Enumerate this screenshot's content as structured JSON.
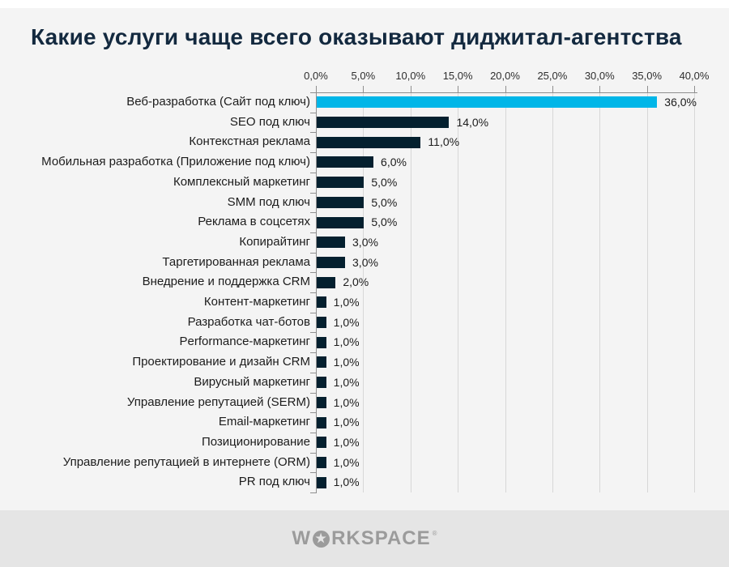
{
  "chart_data": {
    "type": "bar",
    "orientation": "horizontal",
    "title": "Какие услуги чаще всего оказывают диджитал-агентства",
    "categories": [
      "Веб-разработка (Сайт под ключ)",
      "SEO под ключ",
      "Контекстная реклама",
      "Мобильная разработка (Приложение под ключ)",
      "Комплексный маркетинг",
      "SMM под ключ",
      "Реклама в соцсетях",
      "Копирайтинг",
      "Таргетированная реклама",
      "Внедрение и поддержка CRM",
      "Контент-маркетинг",
      "Разработка чат-ботов",
      "Performance-маркетинг",
      "Проектирование и дизайн CRM",
      "Вирусный маркетинг",
      "Управление репутацией (SERM)",
      "Email-маркетинг",
      "Позиционирование",
      "Управление репутацией в интернете (ORM)",
      "PR под ключ"
    ],
    "values": [
      36,
      14,
      11,
      6,
      5,
      5,
      5,
      3,
      3,
      2,
      1,
      1,
      1,
      1,
      1,
      1,
      1,
      1,
      1,
      1
    ],
    "value_labels": [
      "36,0%",
      "14,0%",
      "11,0%",
      "6,0%",
      "5,0%",
      "5,0%",
      "5,0%",
      "3,0%",
      "3,0%",
      "2,0%",
      "1,0%",
      "1,0%",
      "1,0%",
      "1,0%",
      "1,0%",
      "1,0%",
      "1,0%",
      "1,0%",
      "1,0%",
      "1,0%"
    ],
    "xlabel": "",
    "ylabel": "",
    "xlim": [
      0,
      40
    ],
    "x_tick_labels": [
      "0,0%",
      "5,0%",
      "10,0%",
      "15,0%",
      "20,0%",
      "25,0%",
      "30,0%",
      "35,0%",
      "40,0%"
    ],
    "grid": true,
    "legend": false,
    "highlight_index": 0,
    "colors": {
      "highlight_bar": "#00b6e8",
      "bar": "#04202f",
      "gridline": "#d7d7d7",
      "axis": "#8f8f8f",
      "title": "#13293f",
      "label_text": "#1c1c1c"
    }
  },
  "footer": {
    "logo_prefix": "W",
    "logo_star_icon": "star-in-circle",
    "logo_suffix": "RKSPACE",
    "mark": "®"
  }
}
